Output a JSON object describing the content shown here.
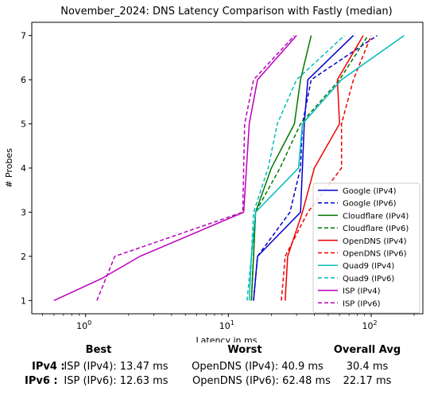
{
  "chart_data": {
    "type": "line",
    "title": "November_2024: DNS Latency Comparison with Fastly (median)",
    "xlabel": "Latency in ms",
    "ylabel": "# Probes",
    "xscale": "log",
    "xlim": [
      0.42,
      230
    ],
    "ylim": [
      0.7,
      7.3
    ],
    "xticks": [
      {
        "value": 1,
        "label": "10",
        "sup": "0"
      },
      {
        "value": 10,
        "label": "10",
        "sup": "1"
      },
      {
        "value": 100,
        "label": "10",
        "sup": "2"
      }
    ],
    "yticks": [
      1,
      2,
      3,
      4,
      5,
      6,
      7
    ],
    "grid": false,
    "legend_position": "lower-right",
    "series": [
      {
        "name": "Google (IPv4)",
        "color": "#0000cc",
        "style": "solid",
        "points": [
          [
            15,
            1
          ],
          [
            16,
            2
          ],
          [
            32,
            3
          ],
          [
            33,
            4
          ],
          [
            34,
            5
          ],
          [
            36,
            6
          ],
          [
            75,
            7
          ]
        ]
      },
      {
        "name": "Google (IPv6)",
        "color": "#0000cc",
        "style": "dashed",
        "points": [
          [
            15,
            1
          ],
          [
            16,
            2
          ],
          [
            27,
            3
          ],
          [
            32,
            4
          ],
          [
            33,
            5
          ],
          [
            38,
            6
          ],
          [
            110,
            7
          ]
        ]
      },
      {
        "name": "Cloudflare (IPv4)",
        "color": "#007700",
        "style": "solid",
        "points": [
          [
            14.5,
            1
          ],
          [
            15,
            2
          ],
          [
            15.5,
            3
          ],
          [
            20,
            4
          ],
          [
            29,
            5
          ],
          [
            32,
            6
          ],
          [
            38,
            7
          ]
        ]
      },
      {
        "name": "Cloudflare (IPv6)",
        "color": "#007700",
        "style": "dashed",
        "points": [
          [
            14.5,
            1
          ],
          [
            15,
            2
          ],
          [
            15.5,
            3
          ],
          [
            23,
            4
          ],
          [
            32,
            5
          ],
          [
            60,
            6
          ],
          [
            95,
            7
          ]
        ]
      },
      {
        "name": "OpenDNS (IPv4)",
        "color": "#ee0000",
        "style": "solid",
        "points": [
          [
            25,
            1
          ],
          [
            26,
            2
          ],
          [
            33,
            3
          ],
          [
            40,
            4
          ],
          [
            60,
            5
          ],
          [
            58,
            6
          ],
          [
            88,
            7
          ]
        ]
      },
      {
        "name": "OpenDNS (IPv6)",
        "color": "#ee0000",
        "style": "dashed",
        "points": [
          [
            23.5,
            1
          ],
          [
            25,
            2
          ],
          [
            36,
            3
          ],
          [
            62,
            4
          ],
          [
            62,
            5
          ],
          [
            75,
            6
          ],
          [
            100,
            7
          ]
        ]
      },
      {
        "name": "Quad9 (IPv4)",
        "color": "#00bbbb",
        "style": "solid",
        "points": [
          [
            14,
            1
          ],
          [
            14.5,
            2
          ],
          [
            15.5,
            3
          ],
          [
            31,
            4
          ],
          [
            33,
            5
          ],
          [
            62,
            6
          ],
          [
            170,
            7
          ]
        ]
      },
      {
        "name": "Quad9 (IPv6)",
        "color": "#00bbbb",
        "style": "dashed",
        "points": [
          [
            13.5,
            1
          ],
          [
            14.5,
            2
          ],
          [
            15,
            3
          ],
          [
            19,
            4
          ],
          [
            22,
            5
          ],
          [
            30,
            6
          ],
          [
            65,
            7
          ]
        ]
      },
      {
        "name": "ISP (IPv4)",
        "color": "#bb00bb",
        "style": "solid",
        "points": [
          [
            0.6,
            1
          ],
          [
            1.3,
            1.5
          ],
          [
            2.4,
            2
          ],
          [
            12.8,
            3
          ],
          [
            14,
            5
          ],
          [
            16,
            6
          ],
          [
            30,
            7
          ]
        ]
      },
      {
        "name": "ISP (IPv6)",
        "color": "#bb00bb",
        "style": "dashed",
        "points": [
          [
            1.2,
            1
          ],
          [
            1.6,
            2
          ],
          [
            12.6,
            3
          ],
          [
            13,
            5
          ],
          [
            15,
            6
          ],
          [
            29,
            7
          ]
        ]
      }
    ]
  },
  "stats": {
    "headers": {
      "best": "Best",
      "worst": "Worst",
      "avg": "Overall Avg"
    },
    "rows": [
      {
        "label": "IPv4 :",
        "best": "ISP (IPv4): 13.47 ms",
        "worst": "OpenDNS (IPv4): 40.9 ms",
        "avg": "30.4 ms"
      },
      {
        "label": "IPv6 :",
        "best": "ISP (IPv6): 12.63 ms",
        "worst": "OpenDNS (IPv6): 62.48 ms",
        "avg": "22.17 ms"
      }
    ]
  }
}
